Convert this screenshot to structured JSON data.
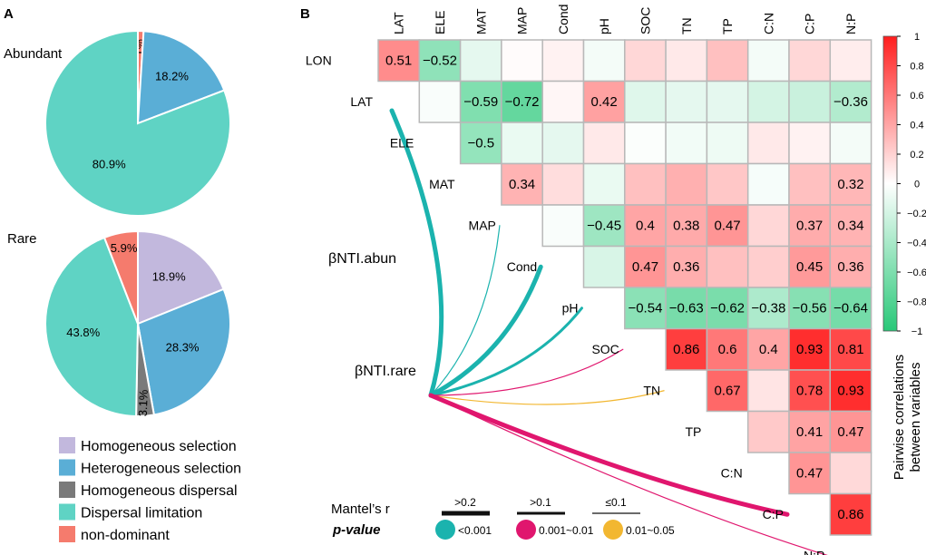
{
  "panel_labels": {
    "a": "A",
    "b": "B"
  },
  "colors": {
    "homogeneous_selection": "#c2b8dd",
    "heterogeneous_selection": "#5aaed6",
    "homogeneous_dispersal": "#7a7a7a",
    "dispersal_limitation": "#5fd3c4",
    "non_dominant": "#f57b6d",
    "teal_line": "#1bb3ae",
    "magenta_line": "#e0166e",
    "orange_line": "#f2b731",
    "cell_border": "#b8b8b8"
  },
  "chart_data": [
    {
      "type": "pie",
      "title": "Abundant",
      "labels": [
        "non-dominant",
        "Heterogeneous selection",
        "Dispersal limitation"
      ],
      "values": [
        1,
        18.2,
        80.9
      ],
      "value_labels": [
        "1%",
        "18.2%",
        "80.9%"
      ]
    },
    {
      "type": "pie",
      "title": "Rare",
      "labels": [
        "Homogeneous selection",
        "Heterogeneous selection",
        "Homogeneous dispersal",
        "Dispersal limitation",
        "non-dominant"
      ],
      "values": [
        18.9,
        28.3,
        3.1,
        43.8,
        5.9
      ],
      "value_labels": [
        "18.9%",
        "28.3%",
        "3.1%",
        "43.8%",
        "5.9%"
      ]
    },
    {
      "type": "heatmap",
      "variables": [
        "LON",
        "LAT",
        "ELE",
        "MAT",
        "MAP",
        "Cond",
        "pH",
        "SOC",
        "TN",
        "TP",
        "C:N",
        "C:P",
        "N:P"
      ],
      "matrix": [
        [
          null,
          0.51,
          -0.52,
          -0.12,
          0.02,
          0.06,
          -0.05,
          0.18,
          0.1,
          0.28,
          -0.05,
          0.18,
          0.08
        ],
        [
          null,
          null,
          -0.03,
          -0.59,
          -0.72,
          0.04,
          0.42,
          -0.15,
          -0.12,
          -0.12,
          -0.2,
          -0.25,
          -0.36
        ],
        [
          null,
          null,
          null,
          -0.5,
          -0.1,
          -0.12,
          0.1,
          -0.02,
          -0.06,
          -0.08,
          0.1,
          0.06,
          -0.05
        ],
        [
          null,
          null,
          null,
          null,
          0.34,
          0.15,
          -0.1,
          0.28,
          0.35,
          0.25,
          -0.04,
          0.28,
          0.32
        ],
        [
          null,
          null,
          null,
          null,
          null,
          -0.03,
          -0.45,
          0.4,
          0.38,
          0.47,
          0.18,
          0.37,
          0.34
        ],
        [
          null,
          null,
          null,
          null,
          null,
          null,
          -0.18,
          0.47,
          0.36,
          0.28,
          0.22,
          0.45,
          0.36
        ],
        [
          null,
          null,
          null,
          null,
          null,
          null,
          null,
          -0.54,
          -0.63,
          -0.62,
          -0.38,
          -0.56,
          -0.64
        ],
        [
          null,
          null,
          null,
          null,
          null,
          null,
          null,
          null,
          0.86,
          0.6,
          0.4,
          0.93,
          0.81
        ],
        [
          null,
          null,
          null,
          null,
          null,
          null,
          null,
          null,
          null,
          0.67,
          0.12,
          0.78,
          0.93
        ],
        [
          null,
          null,
          null,
          null,
          null,
          null,
          null,
          null,
          null,
          null,
          0.24,
          0.41,
          0.47
        ],
        [
          null,
          null,
          null,
          null,
          null,
          null,
          null,
          null,
          null,
          null,
          null,
          0.47,
          0.17
        ],
        [
          null,
          null,
          null,
          null,
          null,
          null,
          null,
          null,
          null,
          null,
          null,
          null,
          0.86
        ],
        [
          null,
          null,
          null,
          null,
          null,
          null,
          null,
          null,
          null,
          null,
          null,
          null,
          null
        ]
      ],
      "labeled_cells": [
        [
          0,
          1,
          "0.51"
        ],
        [
          0,
          2,
          "−0.52"
        ],
        [
          1,
          3,
          "−0.59"
        ],
        [
          1,
          4,
          "−0.72"
        ],
        [
          1,
          6,
          "0.42"
        ],
        [
          1,
          12,
          "−0.36"
        ],
        [
          2,
          3,
          "−0.5"
        ],
        [
          3,
          4,
          "0.34"
        ],
        [
          3,
          12,
          "0.32"
        ],
        [
          4,
          6,
          "−0.45"
        ],
        [
          4,
          7,
          "0.4"
        ],
        [
          4,
          8,
          "0.38"
        ],
        [
          4,
          9,
          "0.47"
        ],
        [
          4,
          11,
          "0.37"
        ],
        [
          4,
          12,
          "0.34"
        ],
        [
          5,
          7,
          "0.47"
        ],
        [
          5,
          8,
          "0.36"
        ],
        [
          5,
          11,
          "0.45"
        ],
        [
          5,
          12,
          "0.36"
        ],
        [
          6,
          7,
          "−0.54"
        ],
        [
          6,
          8,
          "−0.63"
        ],
        [
          6,
          9,
          "−0.62"
        ],
        [
          6,
          10,
          "−0.38"
        ],
        [
          6,
          11,
          "−0.56"
        ],
        [
          6,
          12,
          "−0.64"
        ],
        [
          7,
          8,
          "0.86"
        ],
        [
          7,
          9,
          "0.6"
        ],
        [
          7,
          10,
          "0.4"
        ],
        [
          7,
          11,
          "0.93"
        ],
        [
          7,
          12,
          "0.81"
        ],
        [
          8,
          9,
          "0.67"
        ],
        [
          8,
          11,
          "0.78"
        ],
        [
          8,
          12,
          "0.93"
        ],
        [
          9,
          11,
          "0.41"
        ],
        [
          9,
          12,
          "0.47"
        ],
        [
          10,
          11,
          "0.47"
        ],
        [
          11,
          12,
          "0.86"
        ]
      ],
      "colorbar": {
        "range": [
          -1,
          1
        ],
        "ticks": [
          "1",
          "0.8",
          "0.6",
          "0.4",
          "0.2",
          "0",
          "−0.2",
          "−0.4",
          "−0.6",
          "−0.8",
          "−1"
        ],
        "label_line1": "Pairwise correlations",
        "label_line2": "between variables"
      },
      "sources": [
        "βNTI.abun",
        "βNTI.rare"
      ],
      "mantel_links": [
        {
          "source": 0,
          "target": 1,
          "r_class": ">0.2",
          "p_class": "<0.001"
        },
        {
          "source": 0,
          "target": 4,
          "r_class": "≤0.1",
          "p_class": "<0.001"
        },
        {
          "source": 1,
          "target": 4,
          "r_class": "≤0.1",
          "p_class": "<0.001"
        },
        {
          "source": 1,
          "target": 5,
          "r_class": ">0.2",
          "p_class": "<0.001"
        },
        {
          "source": 1,
          "target": 6,
          "r_class": ">0.1",
          "p_class": "<0.001"
        },
        {
          "source": 1,
          "target": 7,
          "r_class": "≤0.1",
          "p_class": "0.001~0.01"
        },
        {
          "source": 1,
          "target": 8,
          "r_class": "≤0.1",
          "p_class": "0.01~0.05"
        },
        {
          "source": 1,
          "target": 11,
          "r_class": ">0.2",
          "p_class": "0.001~0.01"
        },
        {
          "source": 1,
          "target": 12,
          "r_class": "≤0.1",
          "p_class": "0.001~0.01"
        }
      ],
      "mantel_legend": {
        "r_title": "Mantel’s r",
        "r_items": [
          ">0.2",
          ">0.1",
          "≤0.1"
        ],
        "p_title": "p-value",
        "p_items": [
          "<0.001",
          "0.001~0.01",
          "0.01~0.05"
        ]
      }
    }
  ],
  "legend": {
    "items": [
      {
        "label": "Homogeneous selection",
        "color_key": "homogeneous_selection"
      },
      {
        "label": "Heterogeneous selection",
        "color_key": "heterogeneous_selection"
      },
      {
        "label": "Homogeneous dispersal",
        "color_key": "homogeneous_dispersal"
      },
      {
        "label": "Dispersal limitation",
        "color_key": "dispersal_limitation"
      },
      {
        "label": "non-dominant",
        "color_key": "non_dominant"
      }
    ]
  }
}
